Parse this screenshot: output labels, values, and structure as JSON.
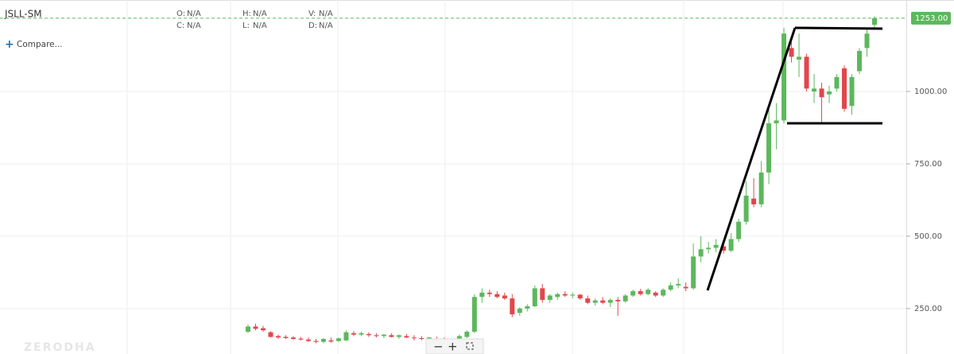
{
  "chart_data": {
    "type": "candlestick",
    "symbol": "JSLL-SM",
    "compare": "Compare...",
    "watermark": "ZERODHA",
    "legend_fields": [
      {
        "label": "O:",
        "value": "N/A"
      },
      {
        "label": "H:",
        "value": "N/A"
      },
      {
        "label": "V:",
        "value": "N/A"
      },
      {
        "label": "C:",
        "value": "N/A"
      },
      {
        "label": "L:",
        "value": "N/A"
      },
      {
        "label": "D:",
        "value": "N/A"
      }
    ],
    "up_color": "#5cb85c",
    "down_color": "#e0474c",
    "ylim": [
      93,
      1316
    ],
    "yticks": [
      {
        "value": 250,
        "label": "250.00"
      },
      {
        "value": 500,
        "label": "500.00"
      },
      {
        "value": 750,
        "label": "750.00"
      },
      {
        "value": 1000,
        "label": "1000.00"
      }
    ],
    "last_price": {
      "value": 1253,
      "label": "1253.00"
    },
    "open": [
      170,
      188,
      182,
      168,
      155,
      152,
      150,
      146,
      143,
      138,
      135,
      140,
      138,
      140,
      165,
      160,
      162,
      158,
      155,
      158,
      152,
      155,
      150,
      148,
      145,
      146,
      143,
      138,
      140,
      152,
      170,
      290,
      305,
      300,
      295,
      285,
      235,
      250,
      258,
      320,
      280,
      290,
      300,
      295,
      298,
      285,
      270,
      278,
      270,
      280,
      275,
      295,
      310,
      300,
      305,
      295,
      315,
      330,
      325,
      320,
      430,
      455,
      460,
      465,
      450,
      490,
      550,
      630,
      610,
      720,
      890,
      900,
      1150,
      1110,
      1120,
      1000,
      1010,
      990,
      1010,
      1080,
      950,
      1070,
      1150,
      1230
    ],
    "high": [
      195,
      198,
      190,
      172,
      160,
      158,
      155,
      152,
      150,
      145,
      148,
      150,
      150,
      175,
      172,
      170,
      168,
      165,
      162,
      165,
      160,
      162,
      158,
      155,
      152,
      153,
      150,
      145,
      160,
      175,
      300,
      320,
      315,
      310,
      305,
      300,
      255,
      265,
      330,
      335,
      300,
      305,
      310,
      305,
      300,
      295,
      285,
      290,
      285,
      290,
      300,
      315,
      318,
      320,
      310,
      320,
      340,
      355,
      340,
      475,
      500,
      480,
      490,
      480,
      510,
      560,
      690,
      700,
      760,
      940,
      960,
      1220,
      1170,
      1200,
      1130,
      1060,
      1030,
      1020,
      1060,
      1090,
      1060,
      1150,
      1220,
      1260
    ],
    "low": [
      165,
      175,
      170,
      150,
      145,
      145,
      142,
      140,
      135,
      130,
      130,
      132,
      135,
      138,
      155,
      155,
      152,
      150,
      148,
      150,
      145,
      148,
      140,
      140,
      138,
      140,
      135,
      128,
      135,
      148,
      165,
      270,
      290,
      285,
      280,
      220,
      225,
      240,
      255,
      270,
      270,
      280,
      290,
      285,
      280,
      265,
      260,
      265,
      255,
      225,
      270,
      290,
      295,
      295,
      290,
      290,
      310,
      320,
      310,
      315,
      410,
      440,
      445,
      440,
      445,
      480,
      540,
      600,
      600,
      680,
      800,
      890,
      1100,
      1050,
      1000,
      960,
      890,
      960,
      1000,
      930,
      920,
      1060,
      1120,
      1220
    ],
    "close": [
      188,
      180,
      175,
      152,
      150,
      148,
      145,
      143,
      138,
      135,
      145,
      136,
      147,
      168,
      160,
      165,
      158,
      155,
      160,
      152,
      158,
      150,
      148,
      145,
      150,
      143,
      138,
      142,
      155,
      170,
      290,
      305,
      300,
      290,
      285,
      230,
      250,
      258,
      320,
      280,
      295,
      300,
      295,
      298,
      285,
      270,
      278,
      270,
      280,
      275,
      295,
      310,
      300,
      315,
      295,
      315,
      330,
      335,
      320,
      430,
      455,
      460,
      470,
      450,
      490,
      550,
      640,
      610,
      720,
      890,
      900,
      1200,
      1120,
      1120,
      1010,
      1010,
      980,
      1000,
      1050,
      940,
      1050,
      1140,
      1200,
      1253
    ]
  }
}
